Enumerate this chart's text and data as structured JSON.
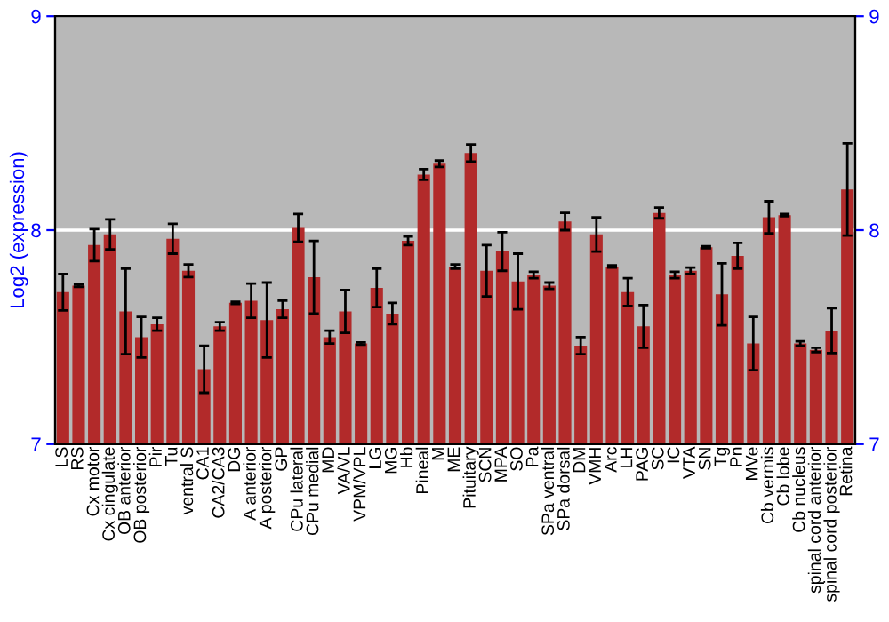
{
  "chart_data": {
    "type": "bar",
    "ylabel": "Log2 (expression)",
    "categories": [
      "LS",
      "RS",
      "Cx motor",
      "Cx cingulate",
      "OB anterior",
      "OB posterior",
      "Pir",
      "Tu",
      "ventral S",
      "CA1",
      "CA2/CA3",
      "DG",
      "A anterior",
      "A posterior",
      "GP",
      "CPu lateral",
      "CPu medial",
      "MD",
      "VA/VL",
      "VPM/VPL",
      "LG",
      "MG",
      "Hb",
      "Pineal",
      "M",
      "ME",
      "Pituitary",
      "SCN",
      "MPA",
      "SO",
      "Pa",
      "SPa ventral",
      "SPa dorsal",
      "DM",
      "VMH",
      "Arc",
      "LH",
      "PAG",
      "SC",
      "IC",
      "VTA",
      "SN",
      "Tg",
      "Pn",
      "MVe",
      "Cb vermis",
      "Cb lobe",
      "Cb nucleus",
      "spinal cord anterior",
      "spinal cord posterior",
      "Retina"
    ],
    "values": [
      7.71,
      7.74,
      7.93,
      7.98,
      7.62,
      7.5,
      7.56,
      7.96,
      7.81,
      7.35,
      7.55,
      7.66,
      7.67,
      7.58,
      7.63,
      8.01,
      7.78,
      7.5,
      7.62,
      7.47,
      7.73,
      7.61,
      7.95,
      8.26,
      8.31,
      7.83,
      8.36,
      7.81,
      7.9,
      7.76,
      7.79,
      7.74,
      8.04,
      7.46,
      7.98,
      7.83,
      7.71,
      7.55,
      8.08,
      7.79,
      7.81,
      7.92,
      7.7,
      7.88,
      7.47,
      8.06,
      8.07,
      7.47,
      7.44,
      7.53,
      8.19
    ],
    "errors": [
      0.085,
      0.005,
      0.075,
      0.07,
      0.2,
      0.095,
      0.03,
      0.07,
      0.03,
      0.11,
      0.02,
      0.005,
      0.08,
      0.175,
      0.04,
      0.065,
      0.17,
      0.03,
      0.1,
      0.005,
      0.09,
      0.05,
      0.02,
      0.025,
      0.015,
      0.01,
      0.04,
      0.12,
      0.09,
      0.13,
      0.015,
      0.015,
      0.04,
      0.04,
      0.08,
      0.005,
      0.065,
      0.1,
      0.025,
      0.015,
      0.015,
      0.005,
      0.145,
      0.06,
      0.125,
      0.075,
      0.005,
      0.01,
      0.01,
      0.105,
      0.215
    ],
    "color": "#b22a2a",
    "ylim": [
      7,
      9
    ],
    "yticks": [
      7,
      8,
      9
    ],
    "y2lim": [
      7,
      9
    ],
    "y2ticks": [
      7,
      8,
      9
    ],
    "grid": "y",
    "legend": false
  }
}
